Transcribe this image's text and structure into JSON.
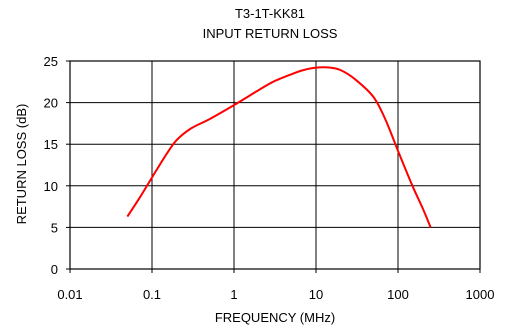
{
  "chart_data": {
    "type": "line",
    "title": "T3-1T-KK81",
    "subtitle": "INPUT RETURN LOSS",
    "xlabel": "FREQUENCY (MHz)",
    "ylabel": "RETURN LOSS (dB)",
    "x_scale": "log",
    "xlim": [
      0.01,
      1000
    ],
    "ylim": [
      0,
      25
    ],
    "grid": true,
    "legend": "none",
    "x_ticks": [
      0.01,
      0.1,
      1,
      10,
      100,
      1000
    ],
    "x_tick_labels": [
      "0.01",
      "0.1",
      "1",
      "10",
      "100",
      "1000"
    ],
    "y_ticks": [
      0,
      5,
      10,
      15,
      20,
      25
    ],
    "y_tick_labels": [
      "0",
      "5",
      "10",
      "15",
      "20",
      "25"
    ],
    "series": [
      {
        "color": "#ff0000",
        "x": [
          0.05,
          0.07,
          0.1,
          0.15,
          0.2,
          0.3,
          0.5,
          1,
          2,
          3,
          5,
          7,
          10,
          15,
          20,
          30,
          50,
          70,
          100,
          150,
          200,
          250
        ],
        "y": [
          6.3,
          8.5,
          11.0,
          13.8,
          15.5,
          16.9,
          18.0,
          19.7,
          21.5,
          22.5,
          23.4,
          23.9,
          24.2,
          24.2,
          23.9,
          22.8,
          20.7,
          18.0,
          14.2,
          10.0,
          7.3,
          5.0
        ]
      }
    ]
  }
}
